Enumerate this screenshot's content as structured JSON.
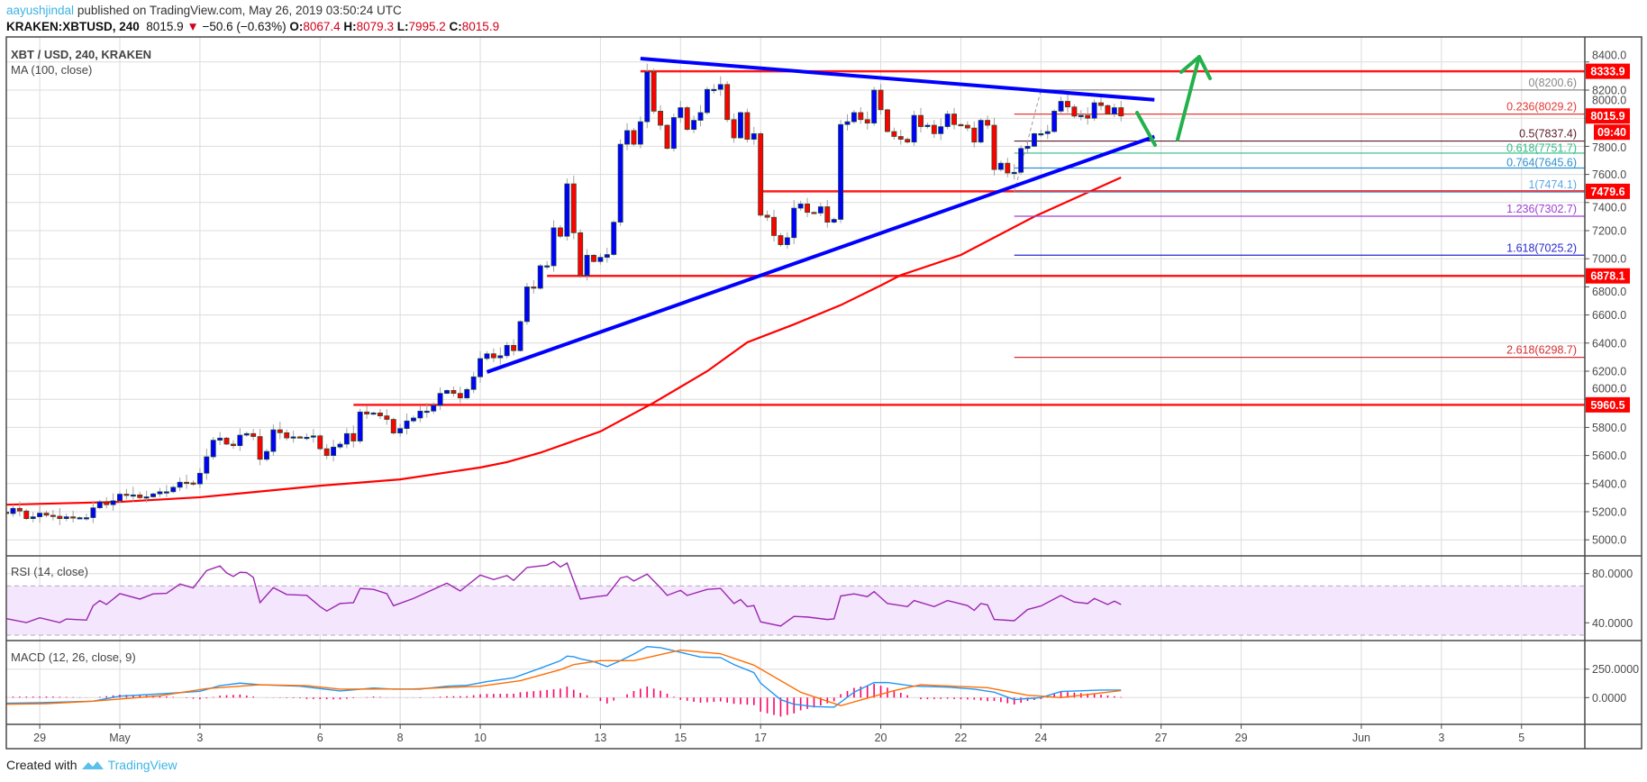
{
  "header": {
    "author": "aayushjindal",
    "published_text": " published on TradingView.com, May 26, 2019 03:50:24 UTC",
    "symbol": "KRAKEN:XBTUSD, 240",
    "last": "8015.9",
    "direction_icon": "down-triangle-icon",
    "change": "−50.6 (−0.63%)",
    "ohlc": [
      {
        "key": "O:",
        "value": "8067.4"
      },
      {
        "key": "H:",
        "value": "8079.3"
      },
      {
        "key": "L:",
        "value": "7995.2"
      },
      {
        "key": "C:",
        "value": "8015.9"
      }
    ]
  },
  "legend": {
    "title": "XBT / USD, 240, KRAKEN",
    "ma": "MA (100, close)",
    "rsi": "RSI (14, close)",
    "macd": "MACD (12, 26, close, 9)"
  },
  "footer": {
    "created_with": "Created with",
    "brand": "TradingView",
    "logo_icon": "tradingview-logo-icon"
  },
  "colors": {
    "up_candle": "#0000ff",
    "down_candle": "#ff0000",
    "ma100": "#ff0000",
    "levels": "#ff0000",
    "trendlines": "#0000ff",
    "arrows": "#22b14c",
    "rsi": "#9c27b0",
    "macd": "#2196f3",
    "signal": "#ff6d00",
    "histogram": "#ff0066"
  },
  "chart_data": {
    "type": "candlestick",
    "interval_minutes": 240,
    "first_candle": "04-28 04",
    "closes": [
      5187,
      5224,
      5205,
      5151,
      5164,
      5190,
      5175,
      5168,
      5151,
      5164,
      5158,
      5158,
      5158,
      5228,
      5271,
      5250,
      5278,
      5325,
      5318,
      5320,
      5300,
      5306,
      5327,
      5342,
      5342,
      5374,
      5410,
      5405,
      5398,
      5474,
      5591,
      5709,
      5724,
      5681,
      5670,
      5745,
      5756,
      5735,
      5573,
      5629,
      5783,
      5762,
      5725,
      5733,
      5730,
      5730,
      5740,
      5648,
      5600,
      5660,
      5681,
      5756,
      5703,
      5910,
      5895,
      5903,
      5882,
      5857,
      5760,
      5792,
      5846,
      5867,
      5916,
      5916,
      5957,
      6042,
      6063,
      6042,
      6010,
      6070,
      6160,
      6290,
      6324,
      6295,
      6310,
      6384,
      6346,
      6553,
      6800,
      6790,
      6950,
      6950,
      7220,
      7160,
      7533,
      7185,
      6880,
      7025,
      6980,
      7010,
      7030,
      7260,
      7815,
      7912,
      7815,
      7975,
      8330,
      8050,
      7950,
      7785,
      8005,
      8075,
      7920,
      7985,
      8040,
      8205,
      8205,
      8240,
      7990,
      7860,
      8040,
      7850,
      7890,
      7310,
      7295,
      7165,
      7100,
      7150,
      7360,
      7390,
      7330,
      7325,
      7370,
      7260,
      7280,
      7955,
      7975,
      8040,
      7990,
      7965,
      8200,
      8060,
      7905,
      7870,
      7850,
      7830,
      8020,
      7940,
      7950,
      7890,
      7940,
      8030,
      7955,
      7950,
      7930,
      7830,
      7985,
      7950,
      7635,
      7680,
      7610,
      7615,
      7785,
      7800,
      7890,
      7890,
      7905,
      8050,
      8120,
      8080,
      8015,
      8020,
      8000,
      8110,
      8090,
      8030,
      8075,
      8015.9
    ],
    "ma100": [
      [
        "04-28 04",
        5250
      ],
      [
        "05-01 00",
        5270
      ],
      [
        "05-03 00",
        5303
      ],
      [
        "05-06 00",
        5385
      ],
      [
        "05-08 00",
        5430
      ],
      [
        "05-10 00",
        5515
      ],
      [
        "05-10 16",
        5553
      ],
      [
        "05-11 12",
        5620
      ],
      [
        "05-13 00",
        5771
      ],
      [
        "05-14 08",
        5976
      ],
      [
        "05-15 16",
        6200
      ],
      [
        "05-16 16",
        6405
      ],
      [
        "05-17 20",
        6533
      ],
      [
        "05-19 00",
        6670
      ],
      [
        "05-20 00",
        6810
      ],
      [
        "05-20 12",
        6883
      ],
      [
        "05-22 00",
        7027
      ],
      [
        "05-23 20",
        7300
      ],
      [
        "05-25 00",
        7450
      ],
      [
        "05-26 00",
        7578
      ]
    ],
    "price_axis": {
      "ticks": [
        "8400.0",
        "8200.0",
        "8000.0",
        "7800.0",
        "7600.0",
        "7400.0",
        "7200.0",
        "7000.0",
        "6800.0",
        "6600.0",
        "6400.0",
        "6200.0",
        "6000.0",
        "5800.0",
        "5600.0",
        "5400.0",
        "5200.0",
        "5000.0"
      ],
      "range": [
        4880,
        8600
      ]
    },
    "x_ticks": [
      {
        "label": "29",
        "date": "04-29 00"
      },
      {
        "label": "May",
        "date": "05-01 00"
      },
      {
        "label": "3",
        "date": "05-03 00"
      },
      {
        "label": "6",
        "date": "05-06 00"
      },
      {
        "label": "8",
        "date": "05-08 00"
      },
      {
        "label": "10",
        "date": "05-10 00"
      },
      {
        "label": "13",
        "date": "05-13 00"
      },
      {
        "label": "15",
        "date": "05-15 00"
      },
      {
        "label": "17",
        "date": "05-17 00"
      },
      {
        "label": "20",
        "date": "05-20 00"
      },
      {
        "label": "22",
        "date": "05-22 00"
      },
      {
        "label": "24",
        "date": "05-24 00"
      },
      {
        "label": "27",
        "date": "05-27 00"
      },
      {
        "label": "29",
        "date": "05-29 00"
      },
      {
        "label": "Jun",
        "date": "06-01 00"
      },
      {
        "label": "3",
        "date": "06-03 00"
      },
      {
        "label": "5",
        "date": "06-05 00"
      }
    ],
    "horizontal_levels": [
      {
        "price": 8333.9,
        "label": "8333.9",
        "from": "05-14 00"
      },
      {
        "price": 7479.6,
        "label": "7479.6",
        "from": "05-17 00"
      },
      {
        "price": 6878.1,
        "label": "6878.1",
        "from": "05-11 16"
      },
      {
        "price": 5960.5,
        "label": "5960.5",
        "from": "05-06 20"
      }
    ],
    "last_price": {
      "price": 8015.9,
      "label": "8015.9",
      "countdown": "09:40"
    },
    "trendlines": [
      {
        "name": "resistance",
        "from": [
          "05-14 00",
          8424
        ],
        "to": [
          "05-26 20",
          8131
        ]
      },
      {
        "name": "support",
        "from": [
          "05-10 04",
          6194
        ],
        "to": [
          "05-26 20",
          7869
        ]
      }
    ],
    "fibonacci": {
      "from": [
        "05-23 08",
        7474.1
      ],
      "to": [
        "05-24 00",
        8200.6
      ],
      "levels": [
        {
          "ratio": "0",
          "price": 8200.6,
          "label": "0(8200.6)",
          "color": "#888888"
        },
        {
          "ratio": "0.236",
          "price": 8029.2,
          "label": "0.236(8029.2)",
          "color": "#e53935"
        },
        {
          "ratio": "0.5",
          "price": 7837.4,
          "label": "0.5(7837.4)",
          "color": "#5d1a2a"
        },
        {
          "ratio": "0.618",
          "price": 7751.7,
          "label": "0.618(7751.7)",
          "color": "#2ebd85"
        },
        {
          "ratio": "0.764",
          "price": 7645.6,
          "label": "0.764(7645.6)",
          "color": "#2f8fd0"
        },
        {
          "ratio": "1",
          "price": 7474.1,
          "label": "1(7474.1)",
          "color": "#5aa9e6"
        },
        {
          "ratio": "1.236",
          "price": 7302.7,
          "label": "1.236(7302.7)",
          "color": "#9c3fd6"
        },
        {
          "ratio": "1.618",
          "price": 7025.2,
          "label": "1.618(7025.2)",
          "color": "#2a2ad0"
        },
        {
          "ratio": "2.618",
          "price": 6298.7,
          "label": "2.618(6298.7)",
          "color": "#d32f2f"
        }
      ]
    },
    "rsi": {
      "ticks": [
        "80.0000",
        "40.0000"
      ],
      "band": [
        30,
        70
      ],
      "points": [
        [
          "04-28 04",
          43.4
        ],
        [
          "04-28 16",
          40.2
        ],
        [
          "04-29 00",
          44.1
        ],
        [
          "04-29 12",
          40.2
        ],
        [
          "04-29 16",
          43.1
        ],
        [
          "04-30 04",
          42.2
        ],
        [
          "04-30 08",
          53.9
        ],
        [
          "04-30 12",
          58.0
        ],
        [
          "04-30 16",
          54.9
        ],
        [
          "05-01 00",
          63.7
        ],
        [
          "05-01 12",
          59.3
        ],
        [
          "05-01 20",
          63.5
        ],
        [
          "05-02 04",
          64.0
        ],
        [
          "05-02 12",
          71.5
        ],
        [
          "05-02 20",
          68.4
        ],
        [
          "05-03 04",
          82.5
        ],
        [
          "05-03 12",
          86.2
        ],
        [
          "05-03 16",
          80.6
        ],
        [
          "05-03 20",
          77.7
        ],
        [
          "05-04 00",
          81.1
        ],
        [
          "05-04 04",
          80.8
        ],
        [
          "05-04 08",
          76.9
        ],
        [
          "05-04 12",
          56.4
        ],
        [
          "05-04 20",
          68.6
        ],
        [
          "05-05 04",
          63.0
        ],
        [
          "05-05 16",
          62.3
        ],
        [
          "05-06 00",
          53.2
        ],
        [
          "05-06 04",
          49.6
        ],
        [
          "05-06 12",
          55.7
        ],
        [
          "05-06 20",
          56.4
        ],
        [
          "05-07 00",
          67.9
        ],
        [
          "05-07 08",
          67.2
        ],
        [
          "05-07 16",
          63.7
        ],
        [
          "05-07 20",
          53.9
        ],
        [
          "05-08 08",
          59.8
        ],
        [
          "05-08 20",
          67.2
        ],
        [
          "05-09 04",
          72.2
        ],
        [
          "05-09 12",
          65.9
        ],
        [
          "05-10 00",
          78.8
        ],
        [
          "05-10 08",
          75.2
        ],
        [
          "05-10 16",
          78.4
        ],
        [
          "05-10 20",
          74.5
        ],
        [
          "05-11 04",
          85.0
        ],
        [
          "05-11 16",
          86.9
        ],
        [
          "05-11 20",
          89.8
        ],
        [
          "05-12 00",
          85.4
        ],
        [
          "05-12 04",
          88.6
        ],
        [
          "05-12 08",
          74.0
        ],
        [
          "05-12 12",
          59.3
        ],
        [
          "05-12 20",
          61.0
        ],
        [
          "05-13 04",
          62.3
        ],
        [
          "05-13 12",
          76.4
        ],
        [
          "05-13 16",
          77.7
        ],
        [
          "05-13 20",
          74.0
        ],
        [
          "05-14 04",
          79.6
        ],
        [
          "05-14 12",
          68.4
        ],
        [
          "05-14 16",
          62.3
        ],
        [
          "05-15 00",
          66.4
        ],
        [
          "05-15 04",
          62.3
        ],
        [
          "05-15 16",
          67.2
        ],
        [
          "05-16 00",
          67.9
        ],
        [
          "05-16 08",
          55.7
        ],
        [
          "05-16 12",
          58.9
        ],
        [
          "05-16 16",
          53.2
        ],
        [
          "05-16 20",
          54.0
        ],
        [
          "05-17 00",
          40.8
        ],
        [
          "05-17 12",
          37.4
        ],
        [
          "05-17 20",
          45.2
        ],
        [
          "05-18 04",
          44.7
        ],
        [
          "05-18 16",
          42.7
        ],
        [
          "05-18 20",
          43.2
        ],
        [
          "05-19 00",
          61.8
        ],
        [
          "05-19 08",
          63.5
        ],
        [
          "05-19 16",
          61.3
        ],
        [
          "05-19 20",
          65.4
        ],
        [
          "05-20 04",
          55.7
        ],
        [
          "05-20 16",
          53.2
        ],
        [
          "05-20 20",
          58.1
        ],
        [
          "05-21 08",
          53.2
        ],
        [
          "05-21 16",
          58.1
        ],
        [
          "05-22 04",
          54.0
        ],
        [
          "05-22 08",
          50.1
        ],
        [
          "05-22 12",
          55.7
        ],
        [
          "05-22 16",
          54.5
        ],
        [
          "05-22 20",
          42.7
        ],
        [
          "05-23 08",
          41.7
        ],
        [
          "05-23 16",
          50.8
        ],
        [
          "05-24 00",
          53.7
        ],
        [
          "05-24 12",
          62.3
        ],
        [
          "05-24 20",
          56.9
        ],
        [
          "05-25 04",
          55.7
        ],
        [
          "05-25 08",
          59.8
        ],
        [
          "05-25 16",
          54.9
        ],
        [
          "05-25 20",
          57.6
        ],
        [
          "05-26 00",
          54.9
        ]
      ]
    },
    "macd": {
      "ticks": [
        "250.0000",
        "0.0000"
      ],
      "macd_points": [
        [
          "04-28 04",
          -50
        ],
        [
          "04-29 00",
          -45
        ],
        [
          "04-30 08",
          -32
        ],
        [
          "05-01 00",
          13
        ],
        [
          "05-02 00",
          32
        ],
        [
          "05-03 00",
          55
        ],
        [
          "05-03 12",
          105
        ],
        [
          "05-04 00",
          127
        ],
        [
          "05-04 12",
          113
        ],
        [
          "05-05 12",
          100
        ],
        [
          "05-06 00",
          79
        ],
        [
          "05-06 12",
          58
        ],
        [
          "05-07 08",
          84
        ],
        [
          "05-07 20",
          74
        ],
        [
          "05-08 12",
          74
        ],
        [
          "05-09 04",
          100
        ],
        [
          "05-09 16",
          108
        ],
        [
          "05-10 04",
          140
        ],
        [
          "05-10 20",
          174
        ],
        [
          "05-11 12",
          258
        ],
        [
          "05-12 00",
          324
        ],
        [
          "05-12 04",
          364
        ],
        [
          "05-12 08",
          359
        ],
        [
          "05-12 12",
          340
        ],
        [
          "05-12 20",
          316
        ],
        [
          "05-13 04",
          272
        ],
        [
          "05-13 12",
          324
        ],
        [
          "05-13 20",
          382
        ],
        [
          "05-14 04",
          448
        ],
        [
          "05-14 12",
          438
        ],
        [
          "05-14 20",
          411
        ],
        [
          "05-15 12",
          356
        ],
        [
          "05-16 00",
          351
        ],
        [
          "05-16 08",
          290
        ],
        [
          "05-16 20",
          219
        ],
        [
          "05-17 00",
          127
        ],
        [
          "05-17 12",
          -18
        ],
        [
          "05-17 20",
          -58
        ],
        [
          "05-18 08",
          -79
        ],
        [
          "05-18 20",
          -84
        ],
        [
          "05-19 08",
          47
        ],
        [
          "05-19 20",
          132
        ],
        [
          "05-20 04",
          132
        ],
        [
          "05-20 20",
          100
        ],
        [
          "05-21 16",
          92
        ],
        [
          "05-22 08",
          74
        ],
        [
          "05-22 20",
          47
        ],
        [
          "05-23 08",
          -18
        ],
        [
          "05-24 00",
          0
        ],
        [
          "05-24 12",
          53
        ],
        [
          "05-25 12",
          66
        ],
        [
          "05-26 00",
          66
        ]
      ],
      "signal_points": [
        [
          "04-28 04",
          -58
        ],
        [
          "04-29 04",
          -53
        ],
        [
          "04-30 08",
          -32
        ],
        [
          "05-02 00",
          16
        ],
        [
          "05-03 04",
          79
        ],
        [
          "05-04 12",
          113
        ],
        [
          "05-05 16",
          105
        ],
        [
          "05-06 12",
          74
        ],
        [
          "05-08 08",
          76
        ],
        [
          "05-10 00",
          100
        ],
        [
          "05-11 00",
          148
        ],
        [
          "05-12 00",
          245
        ],
        [
          "05-12 08",
          290
        ],
        [
          "05-13 00",
          324
        ],
        [
          "05-13 20",
          324
        ],
        [
          "05-15 00",
          417
        ],
        [
          "05-16 00",
          385
        ],
        [
          "05-16 20",
          285
        ],
        [
          "05-18 00",
          47
        ],
        [
          "05-19 00",
          -71
        ],
        [
          "05-20 08",
          61
        ],
        [
          "05-21 00",
          113
        ],
        [
          "05-22 16",
          87
        ],
        [
          "05-23 16",
          21
        ],
        [
          "05-24 12",
          0
        ],
        [
          "05-26 00",
          61
        ]
      ]
    }
  }
}
